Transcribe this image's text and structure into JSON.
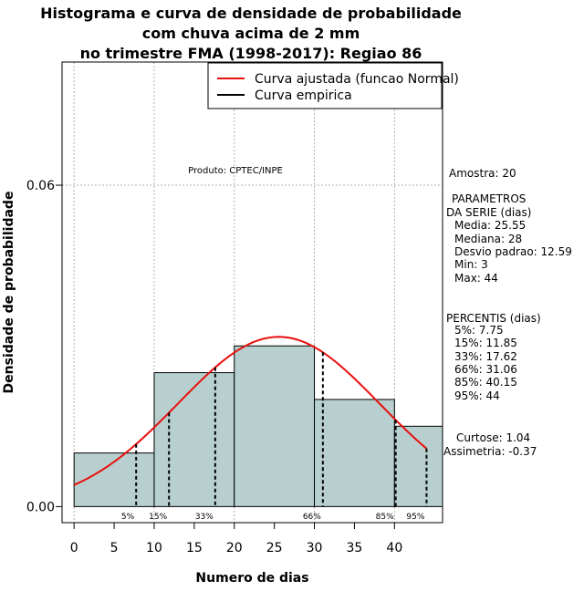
{
  "title_lines": [
    "Histograma e curva de densidade de probabilidade",
    "com chuva acima de 2 mm",
    "no trimestre FMA (1998-2017): Regiao 86"
  ],
  "legend": {
    "fitted": "Curva ajustada (funcao Normal)",
    "empirical": "Curva empirica"
  },
  "product_label": "Produto: CPTEC/INPE",
  "sidebar": {
    "sample": "Amostra: 20",
    "params_header_1": "PARAMETROS",
    "params_header_2": "DA SERIE (dias)",
    "mean": "Media: 25.55",
    "median": "Mediana: 28",
    "std": "Desvio padrao: 12.59",
    "min": "Min: 3",
    "max": "Max: 44",
    "pct_header": "PERCENTIS (dias)",
    "p5": "5%: 7.75",
    "p15": "15%: 11.85",
    "p33": "33%: 17.62",
    "p66": "66%: 31.06",
    "p85": "85%: 40.15",
    "p95": "95%: 44",
    "kurtosis": "Curtose: 1.04",
    "skewness": "Assimetria: -0.37"
  },
  "colors": {
    "bar_fill": "#b7cfcf",
    "curve": "#e8100c",
    "grid": "#b0b0b0"
  },
  "chart_data": {
    "type": "bar",
    "title": "Histograma e curva de densidade de probabilidade com chuva acima de 2 mm no trimestre FMA (1998-2017): Regiao 86",
    "xlabel": "Numero de dias",
    "ylabel": "Densidade de probabilidade",
    "xlim": [
      -1.5,
      46
    ],
    "ylim": [
      -0.003,
      0.083
    ],
    "x_ticks": [
      0,
      5,
      10,
      15,
      20,
      25,
      30,
      35,
      40
    ],
    "y_ticks": [
      0.0,
      0.06
    ],
    "y_tick_labels": [
      "0.00",
      "0.06"
    ],
    "grid_x": [
      0,
      10,
      20,
      30,
      40
    ],
    "grid_y": [
      0.06
    ],
    "bins": [
      {
        "from": 0,
        "to": 10,
        "density": 0.01
      },
      {
        "from": 10,
        "to": 20,
        "density": 0.025
      },
      {
        "from": 20,
        "to": 30,
        "density": 0.03
      },
      {
        "from": 30,
        "to": 40,
        "density": 0.02
      },
      {
        "from": 40,
        "to": 46,
        "density": 0.015
      }
    ],
    "normal_fit": {
      "mean": 25.55,
      "sd": 12.59,
      "x_from": 0,
      "x_to": 44
    },
    "percentiles": [
      {
        "label": "5%",
        "value": 7.75
      },
      {
        "label": "15%",
        "value": 11.85
      },
      {
        "label": "33%",
        "value": 17.62
      },
      {
        "label": "66%",
        "value": 31.06
      },
      {
        "label": "85%",
        "value": 40.15
      },
      {
        "label": "95%",
        "value": 44
      }
    ]
  }
}
